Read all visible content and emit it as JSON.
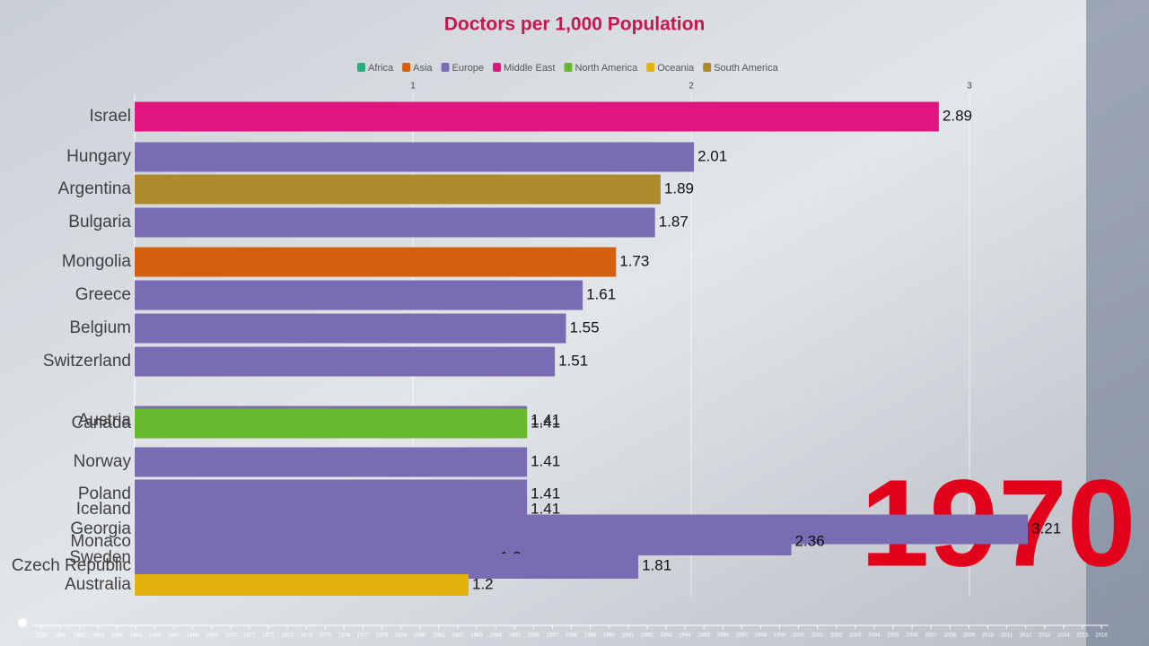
{
  "chart_data": {
    "type": "bar",
    "orientation": "horizontal",
    "title": "Doctors per 1,000 Population",
    "legend": [
      {
        "name": "Africa",
        "color": "#2bab7a"
      },
      {
        "name": "Asia",
        "color": "#d4600f"
      },
      {
        "name": "Europe",
        "color": "#7a6cb3"
      },
      {
        "name": "Middle East",
        "color": "#e0157f"
      },
      {
        "name": "North America",
        "color": "#68b92e"
      },
      {
        "name": "Oceania",
        "color": "#e3b20d"
      },
      {
        "name": "South America",
        "color": "#ad8a2b"
      }
    ],
    "categories": [
      "Israel",
      "Hungary",
      "Argentina",
      "Bulgaria",
      "Mongolia",
      "Greece",
      "Belgium",
      "Switzerland",
      "Austria",
      "Canada",
      "Norway",
      "Poland",
      "Iceland",
      "Georgia",
      "Monaco",
      "Sweden",
      "Czech Republic",
      "Australia"
    ],
    "values": [
      2.89,
      2.01,
      1.89,
      1.87,
      1.73,
      1.61,
      1.55,
      1.51,
      1.41,
      1.41,
      1.41,
      1.41,
      1.41,
      3.21,
      2.36,
      1.3,
      1.81,
      1.2
    ],
    "colors": [
      "#e0157f",
      "#7a6cb3",
      "#ad8a2b",
      "#7a6cb3",
      "#d4600f",
      "#7a6cb3",
      "#7a6cb3",
      "#7a6cb3",
      "#7a6cb3",
      "#68b92e",
      "#7a6cb3",
      "#7a6cb3",
      "#7a6cb3",
      "#7a6cb3",
      "#7a6cb3",
      "#7a6cb3",
      "#7a6cb3",
      "#e3b20d"
    ],
    "xlim": [
      0,
      3.5
    ],
    "xticks": [
      1,
      2,
      3
    ],
    "grid": true,
    "year": "1970",
    "timeline": [
      "1960",
      "1961",
      "1962",
      "1963",
      "1964",
      "1965",
      "1966",
      "1967",
      "1968",
      "1969",
      "1970",
      "1971",
      "1972",
      "1973",
      "1974",
      "1975",
      "1976",
      "1977",
      "1978",
      "1979",
      "1980",
      "1981",
      "1982",
      "1983",
      "1984",
      "1985",
      "1986",
      "1987",
      "1988",
      "1989",
      "1990",
      "1991",
      "1992",
      "1993",
      "1994",
      "1995",
      "1996",
      "1997",
      "1998",
      "1999",
      "2000",
      "2001",
      "2002",
      "2003",
      "2004",
      "2005",
      "2006",
      "2007",
      "2008",
      "2009",
      "2010",
      "2011",
      "2012",
      "2013",
      "2014",
      "2015",
      "2016"
    ]
  }
}
